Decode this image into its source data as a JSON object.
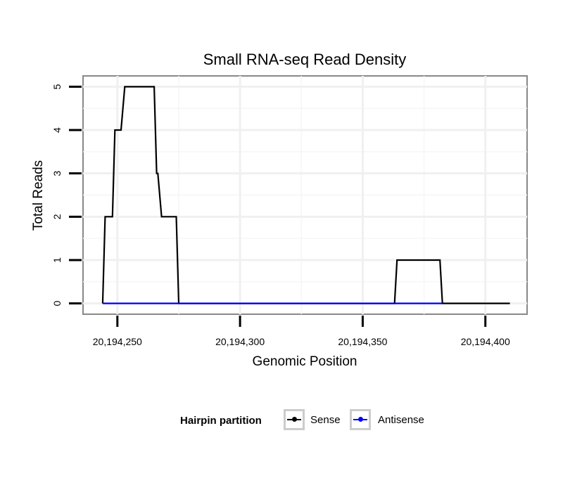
{
  "chart_data": {
    "type": "line",
    "title": "Small RNA-seq Read Density",
    "xlabel": "Genomic Position",
    "ylabel": "Total Reads",
    "xlim": [
      20194236,
      20194417
    ],
    "ylim": [
      -0.25,
      5.25
    ],
    "x_ticks": [
      20194250,
      20194300,
      20194350,
      20194400
    ],
    "x_tick_labels": [
      "20,194,250",
      "20,194,300",
      "20,194,350",
      "20,194,400"
    ],
    "y_ticks": [
      0,
      1,
      2,
      3,
      4,
      5
    ],
    "y_tick_labels": [
      "0",
      "1",
      "2",
      "3",
      "4",
      "5"
    ],
    "legend_title": "Hairpin partition",
    "series": [
      {
        "name": "Sense",
        "color": "#000000",
        "points": [
          [
            20194244,
            0
          ],
          [
            20194245,
            2
          ],
          [
            20194248,
            2
          ],
          [
            20194249,
            4
          ],
          [
            20194251.5,
            4
          ],
          [
            20194253,
            5
          ],
          [
            20194265,
            5
          ],
          [
            20194266,
            3
          ],
          [
            20194266.5,
            3
          ],
          [
            20194268,
            2
          ],
          [
            20194274,
            2
          ],
          [
            20194275,
            0
          ],
          [
            20194363,
            0
          ],
          [
            20194364,
            1
          ],
          [
            20194381.5,
            1
          ],
          [
            20194382.5,
            0
          ],
          [
            20194410,
            0
          ]
        ]
      },
      {
        "name": "Antisense",
        "color": "#0000ff",
        "points": [
          [
            20194244,
            0
          ],
          [
            20194275,
            0
          ],
          [
            20194363,
            0
          ],
          [
            20194382.5,
            0
          ]
        ]
      }
    ]
  }
}
